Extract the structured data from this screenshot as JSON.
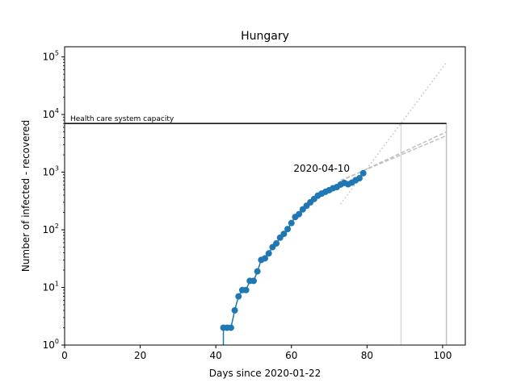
{
  "chart_data": {
    "type": "line",
    "title": "Hungary",
    "xlabel": "Days since 2020-01-22",
    "ylabel": "Number of infected - recovered",
    "xlim": [
      0,
      106
    ],
    "ylim": [
      1,
      150000
    ],
    "yscale": "log",
    "xticks": [
      0,
      20,
      40,
      60,
      80,
      100
    ],
    "xtick_labels": [
      "0",
      "20",
      "40",
      "60",
      "80",
      "100"
    ],
    "yticks": [
      {
        "value": 1,
        "base": "10",
        "exp": "0"
      },
      {
        "value": 10,
        "base": "10",
        "exp": "1"
      },
      {
        "value": 100,
        "base": "10",
        "exp": "2"
      },
      {
        "value": 1000,
        "base": "10",
        "exp": "3"
      },
      {
        "value": 10000,
        "base": "10",
        "exp": "4"
      },
      {
        "value": 100000,
        "base": "10",
        "exp": "5"
      }
    ],
    "grid": false,
    "series": [
      {
        "color": "#1f77b4",
        "style": "line-with-markers",
        "x": [
          42,
          43,
          44,
          45,
          46,
          47,
          48,
          49,
          50,
          51,
          52,
          53,
          54,
          55,
          56,
          57,
          58,
          59,
          60,
          61,
          62,
          63,
          64,
          65,
          66,
          67,
          68,
          69,
          70,
          71,
          72,
          73,
          74,
          75,
          76,
          77,
          78,
          79
        ],
        "y": [
          2,
          2,
          2,
          4,
          7,
          9,
          9,
          13,
          13,
          19,
          30,
          32,
          39,
          50,
          58,
          73,
          85,
          103,
          131,
          167,
          187,
          226,
          261,
          300,
          343,
          392,
          425,
          457,
          488,
          527,
          551,
          610,
          650,
          617,
          660,
          726,
          786,
          960
        ]
      }
    ],
    "projections": [
      {
        "style": "dotted",
        "color": "#bfbfbf",
        "x": [
          73,
          101
        ],
        "y": [
          280,
          80000
        ]
      },
      {
        "style": "dashed",
        "color": "#bfbfbf",
        "x": [
          73,
          101
        ],
        "y": [
          700,
          5000
        ]
      },
      {
        "style": "dashed",
        "color": "#bfbfbf",
        "x": [
          73,
          101
        ],
        "y": [
          720,
          4300
        ]
      }
    ],
    "capacity": {
      "value": 7000,
      "x_start": 0,
      "x_end": 101,
      "label": "Health care system capacity",
      "color": "#000000"
    },
    "vlines": [
      {
        "x": 89,
        "color": "#d9d9d9"
      },
      {
        "x": 101,
        "color": "#bfbfbf"
      }
    ],
    "annotations": [
      {
        "text": "2020-04-10",
        "x": 68,
        "y": 1150
      }
    ]
  }
}
